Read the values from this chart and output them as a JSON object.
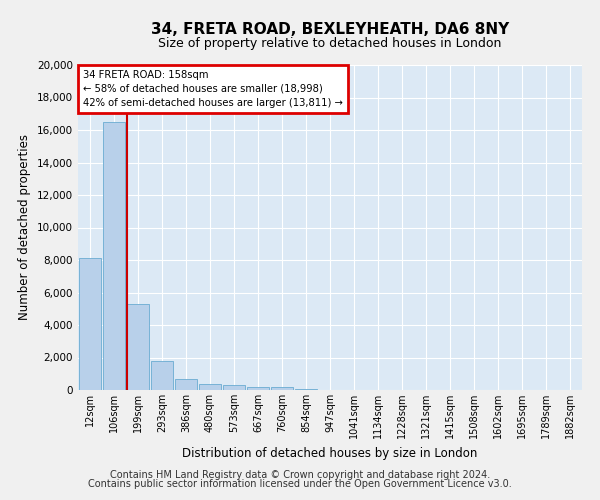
{
  "title1": "34, FRETA ROAD, BEXLEYHEATH, DA6 8NY",
  "title2": "Size of property relative to detached houses in London",
  "xlabel": "Distribution of detached houses by size in London",
  "ylabel": "Number of detached properties",
  "bar_values": [
    8100,
    16500,
    5300,
    1800,
    650,
    350,
    280,
    210,
    200,
    50,
    0,
    0,
    0,
    0,
    0,
    0,
    0,
    0,
    0,
    0,
    0
  ],
  "bar_labels": [
    "12sqm",
    "106sqm",
    "199sqm",
    "293sqm",
    "386sqm",
    "480sqm",
    "573sqm",
    "667sqm",
    "760sqm",
    "854sqm",
    "947sqm",
    "1041sqm",
    "1134sqm",
    "1228sqm",
    "1321sqm",
    "1415sqm",
    "1508sqm",
    "1602sqm",
    "1695sqm",
    "1789sqm",
    "1882sqm"
  ],
  "bar_color": "#b8d0ea",
  "bar_edge_color": "#6aabd2",
  "plot_bg_color": "#dce9f5",
  "fig_bg_color": "#f0f0f0",
  "grid_color": "#ffffff",
  "annotation_line1": "34 FRETA ROAD: 158sqm",
  "annotation_line2": "← 58% of detached houses are smaller (18,998)",
  "annotation_line3": "42% of semi-detached houses are larger (13,811) →",
  "annotation_box_facecolor": "#ffffff",
  "annotation_box_edgecolor": "#dd0000",
  "vline_color": "#cc0000",
  "vline_position": 1.56,
  "ylim_max": 20000,
  "yticks": [
    0,
    2000,
    4000,
    6000,
    8000,
    10000,
    12000,
    14000,
    16000,
    18000,
    20000
  ],
  "footer1": "Contains HM Land Registry data © Crown copyright and database right 2024.",
  "footer2": "Contains public sector information licensed under the Open Government Licence v3.0."
}
